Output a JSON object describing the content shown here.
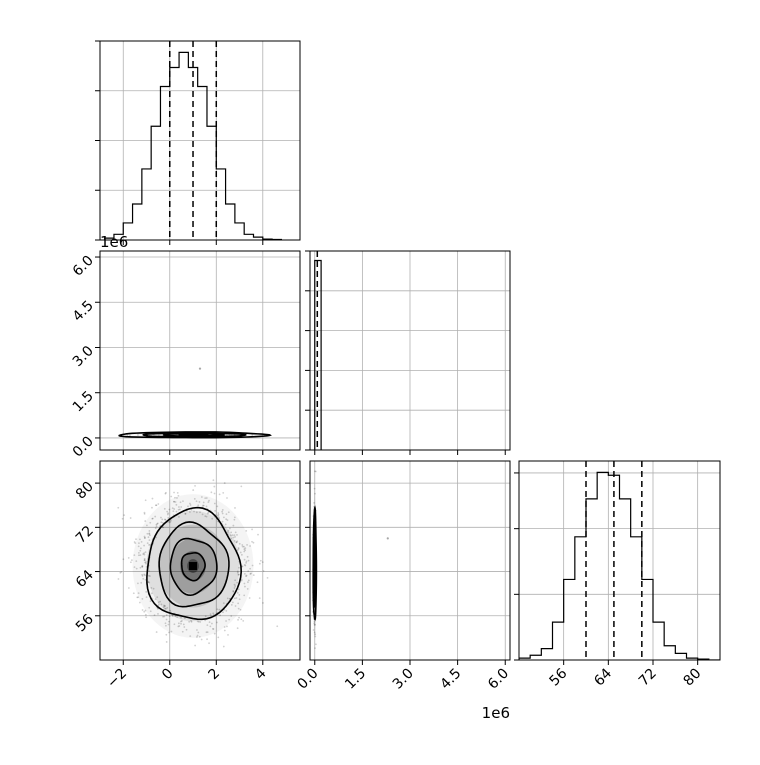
{
  "chart_data": {
    "type": "corner",
    "grid": true,
    "panels": [
      {
        "id": "hist-x",
        "type": "histogram",
        "xlim": [
          -3.0,
          5.6
        ],
        "x_ticks": [
          -2,
          0,
          2,
          4
        ],
        "bin_edges": [
          -2.8,
          -2.4,
          -2.0,
          -1.6,
          -1.2,
          -0.8,
          -0.4,
          0.0,
          0.4,
          0.8,
          1.2,
          1.6,
          2.0,
          2.4,
          2.8,
          3.2,
          3.6,
          4.0,
          4.4,
          4.8
        ],
        "heights": [
          2,
          6,
          18,
          38,
          75,
          120,
          162,
          182,
          198,
          182,
          162,
          120,
          75,
          38,
          18,
          6,
          3,
          1,
          0.5
        ],
        "ylim": [
          0,
          210
        ],
        "quantiles": [
          0.0,
          1.0,
          2.0
        ]
      },
      {
        "id": "hist-y",
        "type": "histogram",
        "xlim": [
          -0.15,
          6.15
        ],
        "x_ticks": [
          0.0,
          1.5,
          3.0,
          4.5,
          6.0
        ],
        "x_tick_labels": [
          "0.0",
          "1.5",
          "3.0",
          "4.5",
          "6.0"
        ],
        "x_offset_label": "1e6",
        "bin_edges": [
          0.0,
          0.2
        ],
        "heights": [
          1
        ],
        "ylim": [
          0,
          1.05
        ],
        "quantiles": [
          0.08
        ]
      },
      {
        "id": "hist-z",
        "type": "histogram",
        "xlim": [
          48,
          84
        ],
        "x_ticks": [
          56,
          64,
          72,
          80
        ],
        "bin_edges": [
          48,
          50,
          52,
          54,
          56,
          58,
          60,
          62,
          64,
          66,
          68,
          70,
          72,
          74,
          76,
          78,
          80,
          82,
          84
        ],
        "heights": [
          2,
          5,
          12,
          40,
          85,
          130,
          170,
          198,
          195,
          170,
          130,
          85,
          40,
          15,
          7,
          2,
          1,
          0
        ],
        "ylim": [
          0,
          210
        ],
        "quantiles": [
          60.0,
          65.0,
          70.0
        ]
      },
      {
        "id": "scatter-x-y",
        "type": "2d-density",
        "xlim": [
          -3.0,
          5.6
        ],
        "ylim": [
          -0.4,
          6.2
        ],
        "y_ticks": [
          0.0,
          1.5,
          3.0,
          4.5,
          6.0
        ],
        "y_tick_labels": [
          "0.0",
          "1.5",
          "3.0",
          "4.5",
          "6.0"
        ],
        "y_offset_label": "1e6",
        "center": [
          1.0,
          0.1
        ],
        "spread": [
          1.0,
          0.03
        ],
        "contour_levels": [
          3.2,
          2.2,
          1.3,
          0.6
        ],
        "outliers": [
          [
            1.3,
            2.3
          ]
        ]
      },
      {
        "id": "scatter-x-z",
        "type": "2d-density",
        "xlim": [
          -3.0,
          5.6
        ],
        "ylim": [
          48,
          84
        ],
        "x_ticks": [
          -2,
          0,
          2,
          4
        ],
        "y_ticks": [
          56,
          64,
          72,
          80
        ],
        "center": [
          1.0,
          65.0
        ],
        "spread": [
          1.0,
          5.0
        ],
        "contour_levels": [
          2.0,
          1.5,
          1.0,
          0.5
        ],
        "outliers": []
      },
      {
        "id": "scatter-y-z",
        "type": "2d-density",
        "xlim": [
          -0.15,
          6.15
        ],
        "ylim": [
          48,
          84
        ],
        "x_ticks": [
          0.0,
          1.5,
          3.0,
          4.5,
          6.0
        ],
        "x_tick_labels": [
          "0.0",
          "1.5",
          "3.0",
          "4.5",
          "6.0"
        ],
        "x_offset_label": "1e6",
        "center": [
          0.0,
          65.0
        ],
        "spread": [
          0.025,
          5.0
        ],
        "contour_levels": [
          2.0,
          1.5,
          1.0,
          0.5
        ],
        "outliers": [
          [
            2.3,
            70.0
          ]
        ]
      }
    ]
  }
}
